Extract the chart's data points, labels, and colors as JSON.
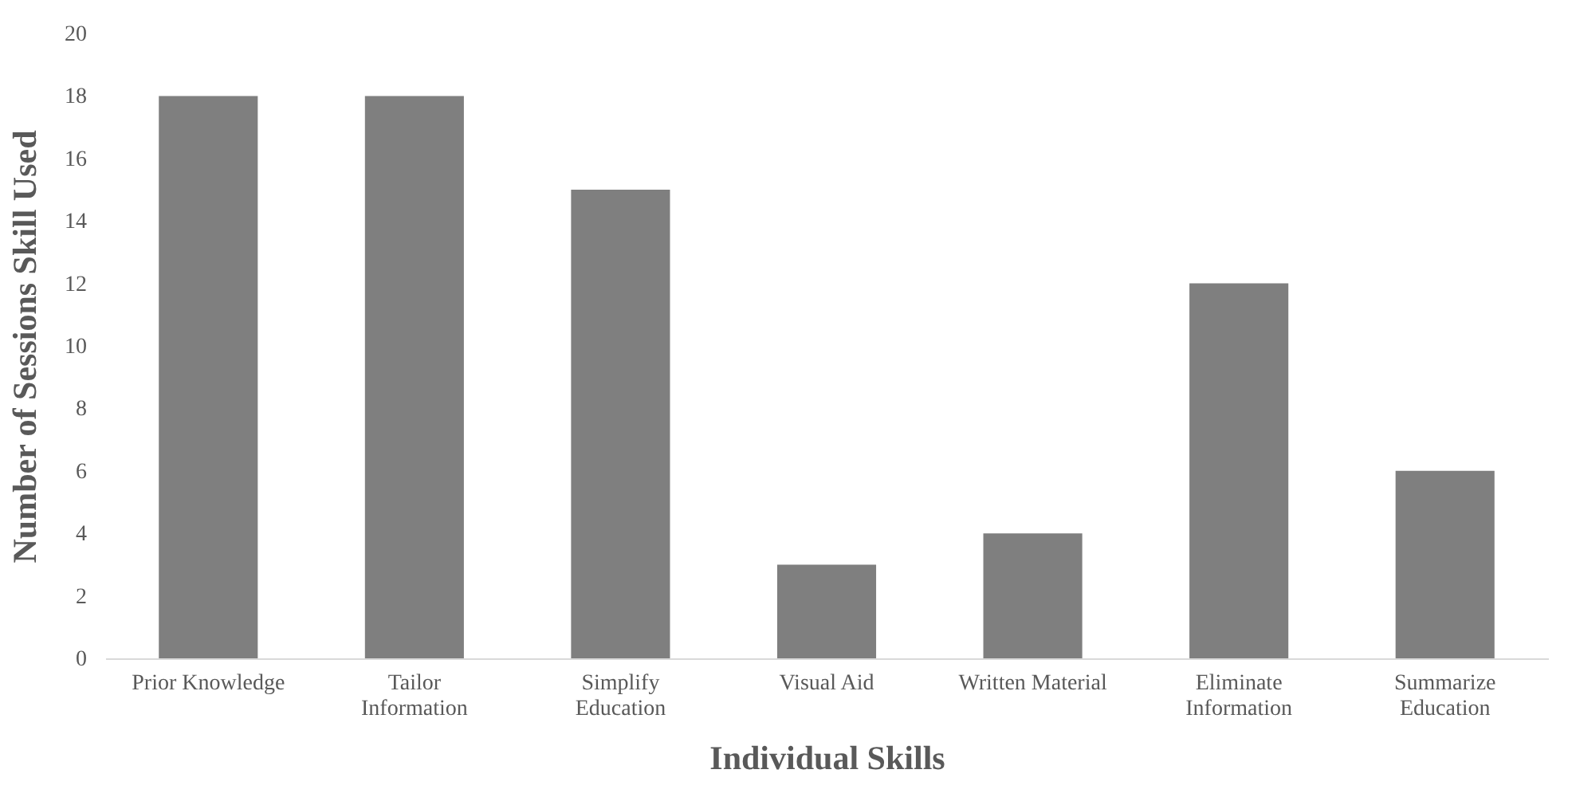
{
  "chart_data": {
    "type": "bar",
    "xlabel": "Individual Skills",
    "ylabel": "Number of Sessions Skill Used",
    "categories": [
      "Prior Knowledge",
      "Tailor Information",
      "Simplify Education",
      "Visual Aid",
      "Written Material",
      "Eliminate Information",
      "Summarize Education"
    ],
    "values": [
      18,
      18,
      15,
      3,
      4,
      12,
      6
    ],
    "color": "#7f7f7f",
    "ylim": [
      0,
      20
    ],
    "yticks": [
      0,
      2,
      4,
      6,
      8,
      10,
      12,
      14,
      16,
      18,
      20
    ],
    "grid": false
  }
}
